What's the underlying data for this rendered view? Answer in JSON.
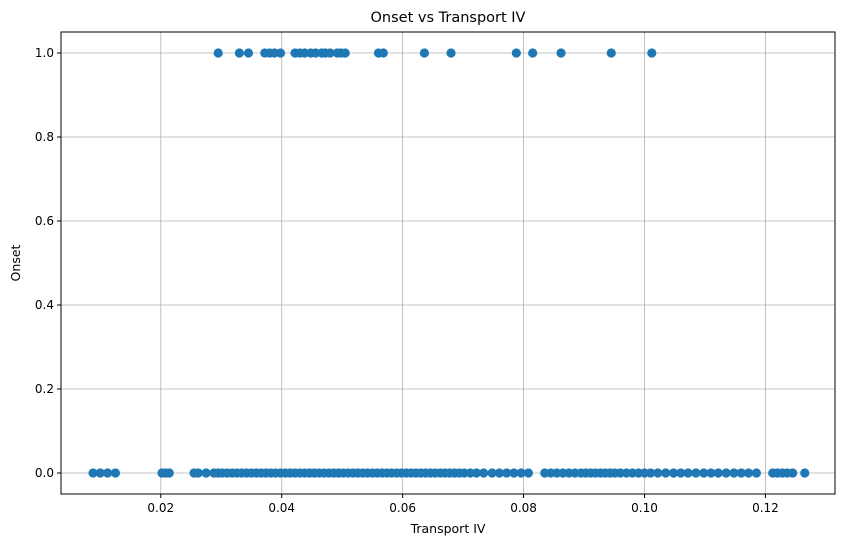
{
  "chart_data": {
    "type": "scatter",
    "title": "Onset vs Transport IV",
    "xlabel": "Transport IV",
    "ylabel": "Onset",
    "xlim": [
      0.0035,
      0.1315
    ],
    "ylim": [
      -0.05,
      1.05
    ],
    "xticks": [
      0.02,
      0.04,
      0.06,
      0.08,
      0.1,
      0.12
    ],
    "xtick_labels": [
      "0.02",
      "0.04",
      "0.06",
      "0.08",
      "0.10",
      "0.12"
    ],
    "yticks": [
      0.0,
      0.2,
      0.4,
      0.6,
      0.8,
      1.0
    ],
    "ytick_labels": [
      "0.0",
      "0.2",
      "0.4",
      "0.6",
      "0.8",
      "1.0"
    ],
    "grid": true,
    "point_color": "#1f77b4",
    "series": [
      {
        "name": "",
        "y": 1,
        "x": [
          0.0295,
          0.033,
          0.0345,
          0.0372,
          0.038,
          0.0388,
          0.0398,
          0.0422,
          0.043,
          0.0438,
          0.0448,
          0.0456,
          0.0466,
          0.0472,
          0.048,
          0.0492,
          0.0498,
          0.0505,
          0.056,
          0.0568,
          0.0636,
          0.068,
          0.0788,
          0.0815,
          0.0862,
          0.0945,
          0.1012
        ]
      },
      {
        "name": "",
        "y": 0,
        "x": [
          0.0088,
          0.01,
          0.0112,
          0.0125,
          0.0202,
          0.0208,
          0.0214,
          0.0255,
          0.0262,
          0.0275,
          0.0288,
          0.0295,
          0.0302,
          0.031,
          0.0318,
          0.0326,
          0.0334,
          0.0342,
          0.035,
          0.0358,
          0.0366,
          0.0374,
          0.0382,
          0.039,
          0.0398,
          0.0406,
          0.0414,
          0.0422,
          0.043,
          0.0438,
          0.0446,
          0.0454,
          0.0462,
          0.047,
          0.0478,
          0.0486,
          0.0494,
          0.0502,
          0.051,
          0.0518,
          0.0526,
          0.0534,
          0.0542,
          0.055,
          0.0558,
          0.0566,
          0.0574,
          0.0582,
          0.059,
          0.0598,
          0.0606,
          0.0614,
          0.0622,
          0.063,
          0.0638,
          0.0646,
          0.0654,
          0.0662,
          0.067,
          0.0678,
          0.0686,
          0.0694,
          0.0702,
          0.0712,
          0.0722,
          0.0734,
          0.0748,
          0.076,
          0.0772,
          0.0784,
          0.0796,
          0.0808,
          0.0835,
          0.0845,
          0.0855,
          0.0865,
          0.0875,
          0.0885,
          0.0895,
          0.0903,
          0.0911,
          0.0919,
          0.0927,
          0.0935,
          0.0943,
          0.0951,
          0.096,
          0.097,
          0.098,
          0.099,
          0.1,
          0.101,
          0.1022,
          0.1035,
          0.1048,
          0.106,
          0.1072,
          0.1085,
          0.1098,
          0.111,
          0.1122,
          0.1135,
          0.1148,
          0.116,
          0.1172,
          0.1185,
          0.1212,
          0.122,
          0.1228,
          0.1236,
          0.1245,
          0.1265
        ]
      }
    ]
  }
}
